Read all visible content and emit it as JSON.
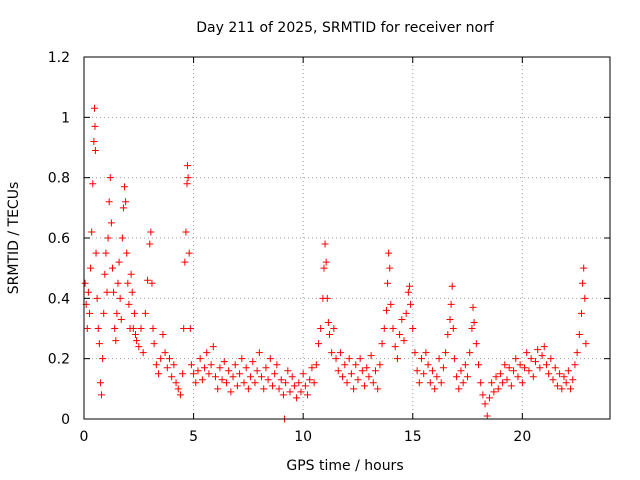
{
  "chart_data": {
    "type": "scatter",
    "title": "Day 211 of 2025, SRMTID for receiver norf",
    "xlabel": "GPS time / hours",
    "ylabel": "SRMTID / TECUs",
    "xlim": [
      0,
      24
    ],
    "ylim": [
      0,
      1.2
    ],
    "x_ticks": [
      {
        "value": 0,
        "label": "0"
      },
      {
        "value": 5,
        "label": "5"
      },
      {
        "value": 10,
        "label": "10"
      },
      {
        "value": 15,
        "label": "15"
      },
      {
        "value": 20,
        "label": "20"
      }
    ],
    "y_ticks": [
      {
        "value": 0,
        "label": "0"
      },
      {
        "value": 0.2,
        "label": "0.2"
      },
      {
        "value": 0.4,
        "label": "0.4"
      },
      {
        "value": 0.6,
        "label": "0.6"
      },
      {
        "value": 0.8,
        "label": "0.8"
      },
      {
        "value": 1.0,
        "label": "1"
      },
      {
        "value": 1.2,
        "label": "1.2"
      }
    ],
    "grid": true,
    "marker": "+",
    "color": "#ff0000",
    "series": [
      {
        "name": "SRMTID",
        "points": [
          [
            0.05,
            0.45
          ],
          [
            0.1,
            0.38
          ],
          [
            0.15,
            0.3
          ],
          [
            0.2,
            0.42
          ],
          [
            0.25,
            0.35
          ],
          [
            0.3,
            0.5
          ],
          [
            0.35,
            0.62
          ],
          [
            0.4,
            0.78
          ],
          [
            0.45,
            0.92
          ],
          [
            0.48,
            1.03
          ],
          [
            0.5,
            0.97
          ],
          [
            0.52,
            0.89
          ],
          [
            0.55,
            0.55
          ],
          [
            0.6,
            0.4
          ],
          [
            0.65,
            0.3
          ],
          [
            0.7,
            0.25
          ],
          [
            0.75,
            0.12
          ],
          [
            0.8,
            0.08
          ],
          [
            0.85,
            0.2
          ],
          [
            0.9,
            0.35
          ],
          [
            0.95,
            0.48
          ],
          [
            1.0,
            0.55
          ],
          [
            1.05,
            0.42
          ],
          [
            1.1,
            0.6
          ],
          [
            1.15,
            0.72
          ],
          [
            1.2,
            0.8
          ],
          [
            1.25,
            0.65
          ],
          [
            1.3,
            0.5
          ],
          [
            1.35,
            0.42
          ],
          [
            1.4,
            0.3
          ],
          [
            1.45,
            0.26
          ],
          [
            1.5,
            0.35
          ],
          [
            1.55,
            0.45
          ],
          [
            1.6,
            0.52
          ],
          [
            1.65,
            0.4
          ],
          [
            1.7,
            0.33
          ],
          [
            1.75,
            0.6
          ],
          [
            1.8,
            0.7
          ],
          [
            1.85,
            0.77
          ],
          [
            1.9,
            0.72
          ],
          [
            1.95,
            0.55
          ],
          [
            2.0,
            0.45
          ],
          [
            2.05,
            0.38
          ],
          [
            2.1,
            0.3
          ],
          [
            2.15,
            0.48
          ],
          [
            2.2,
            0.42
          ],
          [
            2.25,
            0.3
          ],
          [
            2.3,
            0.35
          ],
          [
            2.35,
            0.28
          ],
          [
            2.4,
            0.26
          ],
          [
            2.5,
            0.24
          ],
          [
            2.6,
            0.3
          ],
          [
            2.7,
            0.22
          ],
          [
            2.8,
            0.35
          ],
          [
            2.9,
            0.46
          ],
          [
            3.0,
            0.58
          ],
          [
            3.05,
            0.62
          ],
          [
            3.1,
            0.45
          ],
          [
            3.15,
            0.3
          ],
          [
            3.2,
            0.25
          ],
          [
            3.3,
            0.18
          ],
          [
            3.4,
            0.15
          ],
          [
            3.5,
            0.2
          ],
          [
            3.6,
            0.28
          ],
          [
            3.7,
            0.22
          ],
          [
            3.8,
            0.17
          ],
          [
            3.9,
            0.2
          ],
          [
            4.0,
            0.14
          ],
          [
            4.1,
            0.18
          ],
          [
            4.2,
            0.12
          ],
          [
            4.3,
            0.1
          ],
          [
            4.4,
            0.08
          ],
          [
            4.5,
            0.15
          ],
          [
            4.55,
            0.3
          ],
          [
            4.6,
            0.52
          ],
          [
            4.65,
            0.62
          ],
          [
            4.7,
            0.78
          ],
          [
            4.72,
            0.84
          ],
          [
            4.75,
            0.8
          ],
          [
            4.8,
            0.55
          ],
          [
            4.85,
            0.3
          ],
          [
            4.9,
            0.18
          ],
          [
            5.0,
            0.15
          ],
          [
            5.1,
            0.12
          ],
          [
            5.2,
            0.16
          ],
          [
            5.3,
            0.2
          ],
          [
            5.4,
            0.13
          ],
          [
            5.5,
            0.17
          ],
          [
            5.6,
            0.22
          ],
          [
            5.7,
            0.15
          ],
          [
            5.8,
            0.18
          ],
          [
            5.9,
            0.24
          ],
          [
            6.0,
            0.14
          ],
          [
            6.1,
            0.1
          ],
          [
            6.2,
            0.17
          ],
          [
            6.3,
            0.13
          ],
          [
            6.4,
            0.19
          ],
          [
            6.5,
            0.12
          ],
          [
            6.6,
            0.16
          ],
          [
            6.7,
            0.09
          ],
          [
            6.8,
            0.14
          ],
          [
            6.9,
            0.18
          ],
          [
            7.0,
            0.11
          ],
          [
            7.1,
            0.15
          ],
          [
            7.2,
            0.2
          ],
          [
            7.3,
            0.12
          ],
          [
            7.4,
            0.17
          ],
          [
            7.5,
            0.1
          ],
          [
            7.6,
            0.14
          ],
          [
            7.7,
            0.19
          ],
          [
            7.8,
            0.12
          ],
          [
            7.9,
            0.16
          ],
          [
            8.0,
            0.22
          ],
          [
            8.1,
            0.14
          ],
          [
            8.2,
            0.1
          ],
          [
            8.3,
            0.17
          ],
          [
            8.4,
            0.13
          ],
          [
            8.5,
            0.2
          ],
          [
            8.6,
            0.11
          ],
          [
            8.7,
            0.15
          ],
          [
            8.8,
            0.18
          ],
          [
            8.9,
            0.1
          ],
          [
            9.0,
            0.13
          ],
          [
            9.1,
            0.08
          ],
          [
            9.15,
            0.0
          ],
          [
            9.2,
            0.12
          ],
          [
            9.3,
            0.16
          ],
          [
            9.4,
            0.09
          ],
          [
            9.5,
            0.14
          ],
          [
            9.6,
            0.11
          ],
          [
            9.7,
            0.07
          ],
          [
            9.8,
            0.12
          ],
          [
            9.9,
            0.09
          ],
          [
            10.0,
            0.15
          ],
          [
            10.1,
            0.11
          ],
          [
            10.2,
            0.08
          ],
          [
            10.3,
            0.13
          ],
          [
            10.4,
            0.17
          ],
          [
            10.5,
            0.12
          ],
          [
            10.6,
            0.18
          ],
          [
            10.7,
            0.25
          ],
          [
            10.8,
            0.3
          ],
          [
            10.9,
            0.4
          ],
          [
            10.95,
            0.5
          ],
          [
            11.0,
            0.58
          ],
          [
            11.05,
            0.52
          ],
          [
            11.1,
            0.4
          ],
          [
            11.15,
            0.32
          ],
          [
            11.2,
            0.28
          ],
          [
            11.3,
            0.22
          ],
          [
            11.4,
            0.3
          ],
          [
            11.5,
            0.2
          ],
          [
            11.6,
            0.16
          ],
          [
            11.7,
            0.22
          ],
          [
            11.8,
            0.14
          ],
          [
            11.9,
            0.18
          ],
          [
            12.0,
            0.12
          ],
          [
            12.1,
            0.2
          ],
          [
            12.2,
            0.15
          ],
          [
            12.3,
            0.1
          ],
          [
            12.4,
            0.18
          ],
          [
            12.5,
            0.13
          ],
          [
            12.6,
            0.2
          ],
          [
            12.7,
            0.16
          ],
          [
            12.8,
            0.11
          ],
          [
            12.9,
            0.17
          ],
          [
            13.0,
            0.14
          ],
          [
            13.1,
            0.21
          ],
          [
            13.2,
            0.12
          ],
          [
            13.3,
            0.16
          ],
          [
            13.4,
            0.1
          ],
          [
            13.5,
            0.18
          ],
          [
            13.6,
            0.25
          ],
          [
            13.7,
            0.3
          ],
          [
            13.8,
            0.36
          ],
          [
            13.85,
            0.45
          ],
          [
            13.9,
            0.55
          ],
          [
            13.95,
            0.5
          ],
          [
            14.0,
            0.38
          ],
          [
            14.1,
            0.3
          ],
          [
            14.2,
            0.24
          ],
          [
            14.3,
            0.2
          ],
          [
            14.4,
            0.28
          ],
          [
            14.5,
            0.33
          ],
          [
            14.6,
            0.26
          ],
          [
            14.7,
            0.35
          ],
          [
            14.8,
            0.42
          ],
          [
            14.85,
            0.44
          ],
          [
            14.9,
            0.38
          ],
          [
            15.0,
            0.3
          ],
          [
            15.1,
            0.22
          ],
          [
            15.2,
            0.16
          ],
          [
            15.3,
            0.12
          ],
          [
            15.4,
            0.2
          ],
          [
            15.5,
            0.15
          ],
          [
            15.6,
            0.22
          ],
          [
            15.7,
            0.18
          ],
          [
            15.8,
            0.12
          ],
          [
            15.9,
            0.16
          ],
          [
            16.0,
            0.1
          ],
          [
            16.1,
            0.14
          ],
          [
            16.2,
            0.2
          ],
          [
            16.3,
            0.12
          ],
          [
            16.4,
            0.17
          ],
          [
            16.5,
            0.22
          ],
          [
            16.6,
            0.28
          ],
          [
            16.7,
            0.33
          ],
          [
            16.75,
            0.38
          ],
          [
            16.8,
            0.44
          ],
          [
            16.85,
            0.3
          ],
          [
            16.9,
            0.2
          ],
          [
            17.0,
            0.14
          ],
          [
            17.1,
            0.1
          ],
          [
            17.2,
            0.16
          ],
          [
            17.3,
            0.12
          ],
          [
            17.4,
            0.18
          ],
          [
            17.5,
            0.14
          ],
          [
            17.6,
            0.22
          ],
          [
            17.7,
            0.3
          ],
          [
            17.75,
            0.37
          ],
          [
            17.8,
            0.32
          ],
          [
            17.9,
            0.25
          ],
          [
            18.0,
            0.18
          ],
          [
            18.1,
            0.12
          ],
          [
            18.2,
            0.08
          ],
          [
            18.3,
            0.05
          ],
          [
            18.4,
            0.01
          ],
          [
            18.5,
            0.07
          ],
          [
            18.6,
            0.12
          ],
          [
            18.7,
            0.09
          ],
          [
            18.8,
            0.14
          ],
          [
            18.9,
            0.1
          ],
          [
            19.0,
            0.15
          ],
          [
            19.1,
            0.12
          ],
          [
            19.2,
            0.18
          ],
          [
            19.3,
            0.13
          ],
          [
            19.4,
            0.17
          ],
          [
            19.5,
            0.11
          ],
          [
            19.6,
            0.16
          ],
          [
            19.7,
            0.2
          ],
          [
            19.8,
            0.14
          ],
          [
            19.9,
            0.18
          ],
          [
            20.0,
            0.12
          ],
          [
            20.1,
            0.17
          ],
          [
            20.2,
            0.22
          ],
          [
            20.3,
            0.16
          ],
          [
            20.4,
            0.2
          ],
          [
            20.5,
            0.14
          ],
          [
            20.6,
            0.19
          ],
          [
            20.7,
            0.23
          ],
          [
            20.8,
            0.17
          ],
          [
            20.9,
            0.21
          ],
          [
            21.0,
            0.24
          ],
          [
            21.1,
            0.18
          ],
          [
            21.2,
            0.15
          ],
          [
            21.3,
            0.2
          ],
          [
            21.4,
            0.13
          ],
          [
            21.5,
            0.17
          ],
          [
            21.6,
            0.11
          ],
          [
            21.7,
            0.15
          ],
          [
            21.8,
            0.1
          ],
          [
            21.9,
            0.14
          ],
          [
            22.0,
            0.12
          ],
          [
            22.1,
            0.16
          ],
          [
            22.2,
            0.1
          ],
          [
            22.3,
            0.13
          ],
          [
            22.4,
            0.18
          ],
          [
            22.5,
            0.22
          ],
          [
            22.6,
            0.28
          ],
          [
            22.7,
            0.35
          ],
          [
            22.75,
            0.45
          ],
          [
            22.8,
            0.5
          ],
          [
            22.85,
            0.4
          ],
          [
            22.9,
            0.25
          ]
        ]
      }
    ]
  }
}
